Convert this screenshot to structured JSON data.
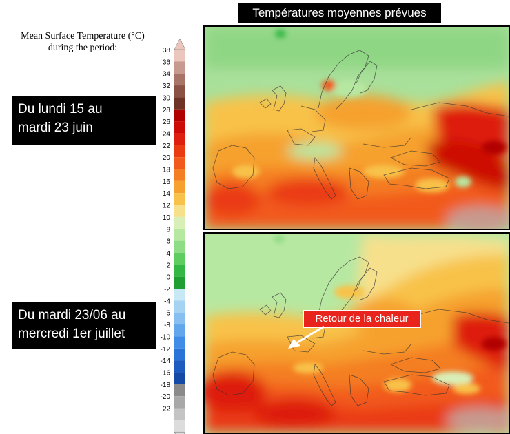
{
  "header": {
    "title": "Températures moyennes prévues"
  },
  "legend": {
    "title_line1": "Mean Surface Temperature (°C)",
    "title_line2": "during the period:",
    "ticks": [
      "38",
      "36",
      "34",
      "32",
      "30",
      "28",
      "26",
      "24",
      "22",
      "20",
      "18",
      "16",
      "14",
      "12",
      "10",
      "8",
      "6",
      "4",
      "2",
      "0",
      "-2",
      "-4",
      "-6",
      "-8",
      "-10",
      "-12",
      "-14",
      "-16",
      "-18",
      "-20",
      "-22"
    ],
    "colors": [
      "#eac6bc",
      "#c79a8f",
      "#a97468",
      "#8a5144",
      "#6e3326",
      "#b00000",
      "#cc0a06",
      "#de1f0e",
      "#ea3a12",
      "#f25a1b",
      "#f47e22",
      "#f6a12d",
      "#f8c24a",
      "#f7e08c",
      "#d8f0b8",
      "#b7e8a2",
      "#8fdc86",
      "#5fcc60",
      "#34b744",
      "#1f9e32",
      "#c8e8f6",
      "#a6d3f2",
      "#86bff0",
      "#62a6ec",
      "#3f8de6",
      "#2a74d8",
      "#1c5cc0",
      "#154aa6",
      "#8a8a8a",
      "#a8a8a8",
      "#c4c4c4",
      "#dcdcdc"
    ],
    "arrow_top_color": "#eac6bc",
    "arrow_bottom_color": "#dcdcdc"
  },
  "periods": {
    "first": {
      "line1": "Du lundi 15 au",
      "line2": "mardi 23 juin"
    },
    "second": {
      "line1": "Du mardi 23/06 au",
      "line2": "mercredi 1er juillet"
    }
  },
  "annotation": {
    "label": "Retour de la chaleur"
  }
}
